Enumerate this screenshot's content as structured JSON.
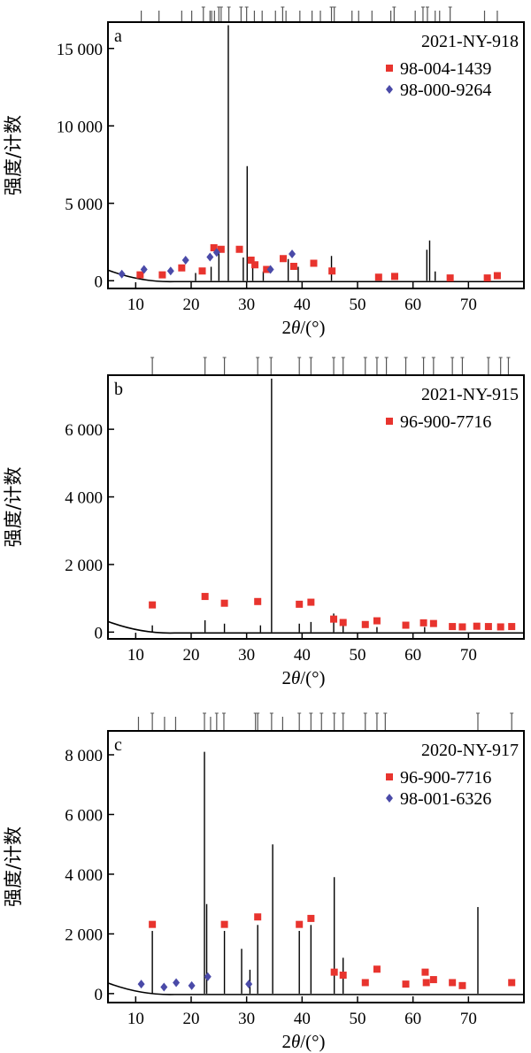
{
  "colors": {
    "marker_red": "#e8342e",
    "marker_blue": "#4a4aa8",
    "trace": "#000000",
    "calc": "#3a8a7a"
  },
  "chart_data": [
    {
      "type": "line",
      "panel_letter": "a",
      "sample": "2021-NY-918",
      "xlabel_prefix": "2",
      "xlabel_theta": "θ",
      "xlabel_suffix": "/(°)",
      "ylabel": "强度/计数",
      "xlim": [
        5,
        80
      ],
      "ylim": [
        -500,
        16700
      ],
      "xticks": [
        10,
        20,
        30,
        40,
        50,
        60,
        70
      ],
      "yticks": [
        0,
        5000,
        10000,
        15000
      ],
      "ytick_labels": [
        "0",
        "5 000",
        "10 000",
        "15 000"
      ],
      "legend": [
        {
          "label": "98-004-1439",
          "marker": "square",
          "color": "#e8342e"
        },
        {
          "label": "98-000-9264",
          "marker": "diamond",
          "color": "#4a4aa8"
        }
      ],
      "peaks": [
        [
          20.8,
          500
        ],
        [
          23.6,
          900
        ],
        [
          25.0,
          1900
        ],
        [
          26.7,
          16500
        ],
        [
          29.4,
          1500
        ],
        [
          30.1,
          7400
        ],
        [
          31.1,
          1100
        ],
        [
          33.0,
          600
        ],
        [
          37.5,
          1400
        ],
        [
          39.3,
          900
        ],
        [
          45.3,
          1600
        ],
        [
          62.5,
          2000
        ],
        [
          63.0,
          2600
        ],
        [
          64.0,
          600
        ]
      ],
      "markers_red": [
        [
          10.8,
          150
        ],
        [
          14.8,
          150
        ],
        [
          18.3,
          600
        ],
        [
          22.0,
          400
        ],
        [
          24.1,
          1900
        ],
        [
          25.4,
          1800
        ],
        [
          28.7,
          1800
        ],
        [
          30.8,
          1100
        ],
        [
          31.5,
          800
        ],
        [
          33.6,
          500
        ],
        [
          36.6,
          1200
        ],
        [
          38.5,
          700
        ],
        [
          42.1,
          900
        ],
        [
          45.4,
          400
        ],
        [
          53.8,
          0
        ],
        [
          56.7,
          50
        ],
        [
          66.7,
          -50
        ],
        [
          73.4,
          -50
        ],
        [
          75.2,
          100
        ]
      ],
      "markers_blue": [
        [
          7.5,
          200
        ],
        [
          11.5,
          500
        ],
        [
          16.3,
          400
        ],
        [
          19.0,
          1100
        ],
        [
          23.4,
          1300
        ],
        [
          24.6,
          1600
        ],
        [
          34.3,
          500
        ],
        [
          38.2,
          1500
        ]
      ],
      "ref_ticks": [
        [
          11.0,
          1
        ],
        [
          14.2,
          1
        ],
        [
          18.3,
          1
        ],
        [
          20.1,
          1
        ],
        [
          22.2,
          0
        ],
        [
          23.4,
          1
        ],
        [
          23.7,
          1
        ],
        [
          24.2,
          1
        ],
        [
          25.0,
          0
        ],
        [
          25.4,
          0
        ],
        [
          26.8,
          0
        ],
        [
          29.0,
          0
        ],
        [
          30.0,
          0
        ],
        [
          31.4,
          1
        ],
        [
          32.8,
          1
        ],
        [
          35.2,
          1
        ],
        [
          36.5,
          0
        ],
        [
          37.1,
          1
        ],
        [
          39.6,
          1
        ],
        [
          41.8,
          1
        ],
        [
          43.3,
          1
        ],
        [
          45.3,
          0
        ],
        [
          45.8,
          0
        ],
        [
          49.0,
          1
        ],
        [
          50.2,
          1
        ],
        [
          52.6,
          1
        ],
        [
          56.0,
          1
        ],
        [
          56.6,
          0
        ],
        [
          60.4,
          1
        ],
        [
          61.8,
          0
        ],
        [
          62.6,
          0
        ],
        [
          64.0,
          1
        ],
        [
          64.8,
          1
        ],
        [
          66.7,
          0
        ],
        [
          72.9,
          1
        ],
        [
          75.2,
          1
        ]
      ]
    },
    {
      "type": "line",
      "panel_letter": "b",
      "sample": "2021-NY-915",
      "xlabel_prefix": "2",
      "xlabel_theta": "θ",
      "xlabel_suffix": "/(°)",
      "ylabel": "强度/计数",
      "xlim": [
        5,
        80
      ],
      "ylim": [
        -200,
        7600
      ],
      "xticks": [
        10,
        20,
        30,
        40,
        50,
        60,
        70
      ],
      "yticks": [
        0,
        2000,
        4000,
        6000
      ],
      "ytick_labels": [
        "0",
        "2 000",
        "4 000",
        "6 000"
      ],
      "legend": [
        {
          "label": "96-900-7716",
          "marker": "square",
          "color": "#e8342e"
        }
      ],
      "peaks": [
        [
          13.0,
          200
        ],
        [
          22.5,
          350
        ],
        [
          26.0,
          250
        ],
        [
          32.5,
          200
        ],
        [
          34.5,
          7500
        ],
        [
          39.5,
          250
        ],
        [
          41.6,
          300
        ],
        [
          45.7,
          550
        ],
        [
          47.4,
          200
        ],
        [
          53.5,
          150
        ],
        [
          62.1,
          150
        ]
      ],
      "markers_red": [
        [
          13.0,
          700
        ],
        [
          22.5,
          950
        ],
        [
          26.0,
          750
        ],
        [
          32.0,
          800
        ],
        [
          39.5,
          720
        ],
        [
          41.6,
          780
        ],
        [
          45.7,
          280
        ],
        [
          47.4,
          180
        ],
        [
          51.4,
          120
        ],
        [
          53.5,
          230
        ],
        [
          58.7,
          100
        ],
        [
          61.9,
          170
        ],
        [
          63.7,
          150
        ],
        [
          67.1,
          60
        ],
        [
          68.9,
          50
        ],
        [
          71.5,
          70
        ],
        [
          73.6,
          60
        ],
        [
          75.8,
          50
        ],
        [
          77.8,
          60
        ]
      ],
      "markers_blue": [],
      "ref_ticks": [
        [
          13.0,
          0
        ],
        [
          22.5,
          0
        ],
        [
          26.0,
          0
        ],
        [
          32.0,
          0
        ],
        [
          34.4,
          0
        ],
        [
          39.5,
          0
        ],
        [
          41.6,
          0
        ],
        [
          45.7,
          0
        ],
        [
          47.4,
          0
        ],
        [
          51.4,
          0
        ],
        [
          53.5,
          0
        ],
        [
          55.2,
          0
        ],
        [
          58.7,
          0
        ],
        [
          61.9,
          0
        ],
        [
          63.7,
          0
        ],
        [
          67.1,
          0
        ],
        [
          68.9,
          0
        ],
        [
          73.6,
          0
        ],
        [
          75.8,
          0
        ],
        [
          77.2,
          0
        ]
      ]
    },
    {
      "type": "line",
      "panel_letter": "c",
      "sample": "2020-NY-917",
      "xlabel_prefix": "2",
      "xlabel_theta": "θ",
      "xlabel_suffix": "/(°)",
      "ylabel": "强度/计数",
      "xlim": [
        5,
        80
      ],
      "ylim": [
        -300,
        8800
      ],
      "xticks": [
        10,
        20,
        30,
        40,
        50,
        60,
        70
      ],
      "yticks": [
        0,
        2000,
        4000,
        6000,
        8000
      ],
      "ytick_labels": [
        "0",
        "2 000",
        "4 000",
        "6 000",
        "8 000"
      ],
      "legend": [
        {
          "label": "96-900-7716",
          "marker": "square",
          "color": "#e8342e"
        },
        {
          "label": "98-001-6326",
          "marker": "diamond",
          "color": "#4a4aa8"
        }
      ],
      "peaks": [
        [
          13.0,
          2100
        ],
        [
          22.4,
          8100
        ],
        [
          22.8,
          3000
        ],
        [
          26.0,
          2100
        ],
        [
          29.1,
          1500
        ],
        [
          30.6,
          800
        ],
        [
          32.0,
          2300
        ],
        [
          34.7,
          5000
        ],
        [
          39.5,
          2100
        ],
        [
          41.6,
          2300
        ],
        [
          45.8,
          3900
        ],
        [
          47.4,
          1200
        ],
        [
          71.7,
          2900
        ]
      ],
      "markers_red": [
        [
          13.0,
          2200
        ],
        [
          26.0,
          2200
        ],
        [
          32.0,
          2450
        ],
        [
          39.5,
          2200
        ],
        [
          41.6,
          2400
        ],
        [
          45.8,
          600
        ],
        [
          47.4,
          500
        ],
        [
          51.4,
          250
        ],
        [
          53.5,
          700
        ],
        [
          58.7,
          200
        ],
        [
          62.2,
          600
        ],
        [
          62.4,
          250
        ],
        [
          63.7,
          350
        ],
        [
          67.1,
          250
        ],
        [
          68.9,
          150
        ],
        [
          77.8,
          250
        ]
      ],
      "markers_blue": [
        [
          11.0,
          200
        ],
        [
          15.1,
          100
        ],
        [
          17.3,
          250
        ],
        [
          20.1,
          150
        ],
        [
          23.0,
          450
        ],
        [
          30.4,
          200
        ]
      ],
      "ref_ticks": [
        [
          10.5,
          1
        ],
        [
          13.0,
          0
        ],
        [
          15.2,
          1
        ],
        [
          17.2,
          1
        ],
        [
          22.4,
          0
        ],
        [
          23.5,
          1
        ],
        [
          24.6,
          0
        ],
        [
          25.9,
          0
        ],
        [
          31.6,
          0
        ],
        [
          32.0,
          0
        ],
        [
          34.5,
          0
        ],
        [
          36.5,
          1
        ],
        [
          39.5,
          0
        ],
        [
          41.6,
          0
        ],
        [
          43.5,
          0
        ],
        [
          45.8,
          0
        ],
        [
          47.4,
          0
        ],
        [
          51.4,
          0
        ],
        [
          53.5,
          0
        ],
        [
          55.0,
          0
        ],
        [
          71.7,
          0
        ],
        [
          77.8,
          0
        ]
      ]
    }
  ]
}
